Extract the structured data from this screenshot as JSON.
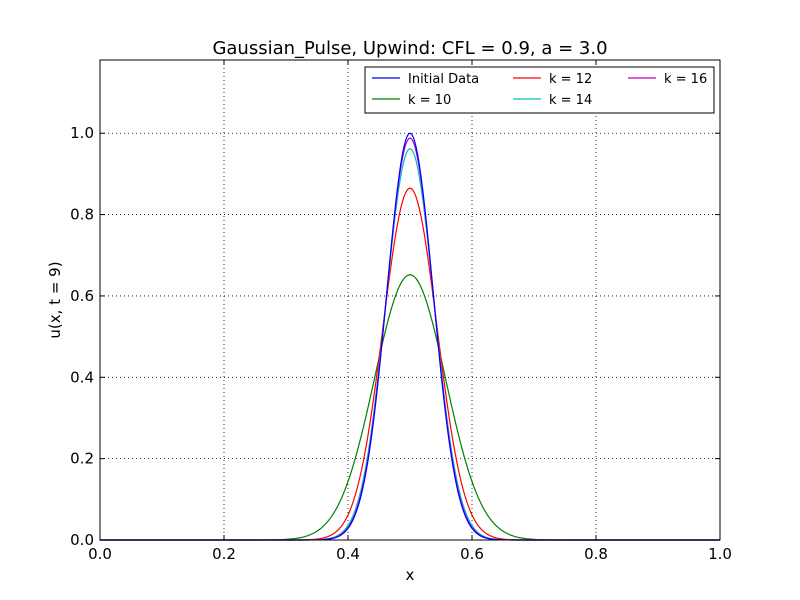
{
  "chart_data": {
    "type": "line",
    "title": "Gaussian_Pulse, Upwind: CFL = 0.9, a = 3.0",
    "xlabel": "x",
    "ylabel": "u(x, t = 9)",
    "xlim": [
      0.0,
      1.0
    ],
    "ylim": [
      0.0,
      1.18
    ],
    "x_ticks": [
      "0.0",
      "0.2",
      "0.4",
      "0.6",
      "0.8",
      "1.0"
    ],
    "y_ticks": [
      "0.0",
      "0.2",
      "0.4",
      "0.6",
      "0.8",
      "1.0"
    ],
    "grid": true,
    "legend_placement": "upper-right",
    "series": [
      {
        "name": "Initial Data",
        "color": "#0000ff",
        "center": 0.5,
        "amplitude": 1.0,
        "sigma": 0.0375
      },
      {
        "name": "k = 10",
        "color": "#008000",
        "center": 0.5,
        "amplitude": 0.652,
        "sigma": 0.0575
      },
      {
        "name": "k = 12",
        "color": "#ff0000",
        "center": 0.5,
        "amplitude": 0.865,
        "sigma": 0.0435
      },
      {
        "name": "k = 14",
        "color": "#00bfbf",
        "center": 0.5,
        "amplitude": 0.962,
        "sigma": 0.039
      },
      {
        "name": "k = 16",
        "color": "#bf00bf",
        "center": 0.5,
        "amplitude": 0.988,
        "sigma": 0.038
      }
    ]
  }
}
